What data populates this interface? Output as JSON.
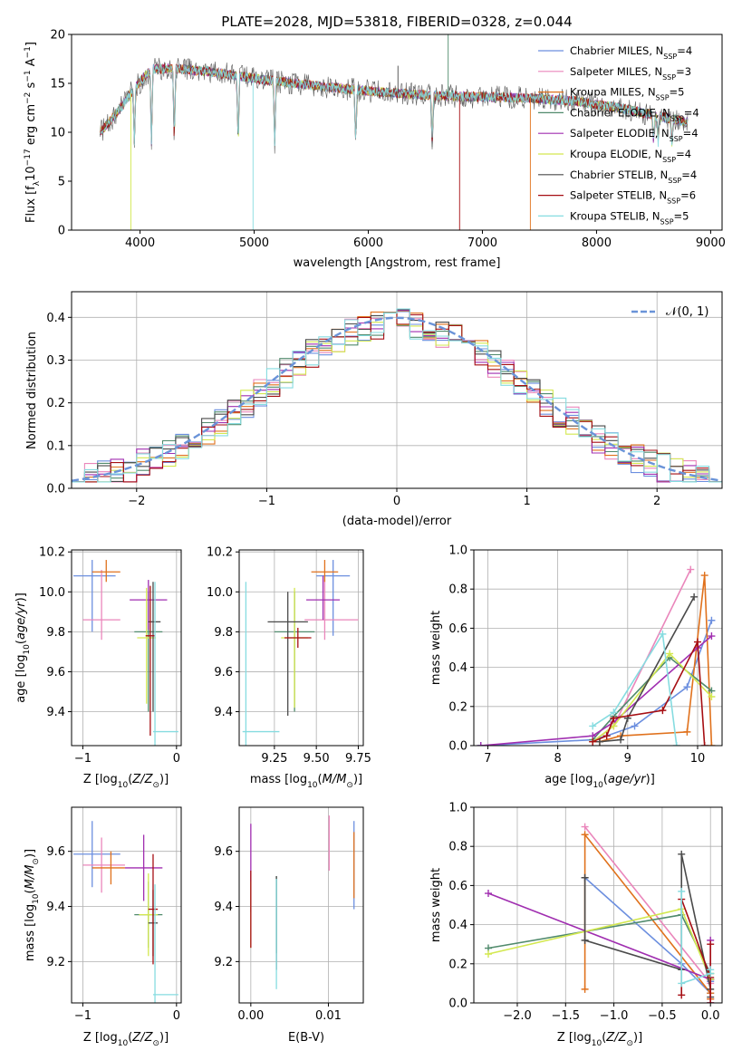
{
  "title": "PLATE=2028, MJD=53818, FIBERID=0328, z=0.044",
  "colors": [
    "#6c8fdf",
    "#ea86bb",
    "#e0711c",
    "#508a6c",
    "#a02eb0",
    "#d3e84f",
    "#4a4a4a",
    "#a60e13",
    "#86dce0"
  ],
  "legend": [
    {
      "base": "Chabrier MILES, N",
      "sub": "SSP",
      "tail": "=4"
    },
    {
      "base": "Salpeter MILES, N",
      "sub": "SSP",
      "tail": "=3"
    },
    {
      "base": "Kroupa MILES, N",
      "sub": "SSP",
      "tail": "=5"
    },
    {
      "base": "Chabrier ELODIE, N",
      "sub": "SSP",
      "tail": "=4"
    },
    {
      "base": "Salpeter ELODIE, N",
      "sub": "SSP",
      "tail": "=4"
    },
    {
      "base": "Kroupa ELODIE, N",
      "sub": "SSP",
      "tail": "=4"
    },
    {
      "base": "Chabrier STELIB, N",
      "sub": "SSP",
      "tail": "=4"
    },
    {
      "base": "Salpeter STELIB, N",
      "sub": "SSP",
      "tail": "=6"
    },
    {
      "base": "Kroupa STELIB, N",
      "sub": "SSP",
      "tail": "=5"
    }
  ],
  "chart_data": [
    {
      "id": "spectrum",
      "type": "line",
      "xlabel": "wavelength [Angstrom, rest frame]",
      "ylabel": "Flux [f_λ 10^-17 erg cm^-2 s^-1 A^-1]",
      "xlim": [
        3400,
        9100
      ],
      "ylim": [
        0,
        20
      ],
      "xticks": [
        4000,
        5000,
        6000,
        7000,
        8000,
        9000
      ],
      "yticks": [
        0,
        5,
        10,
        15,
        20
      ],
      "grid": false,
      "legend_position": "top-right",
      "continuum": {
        "x": [
          3650,
          3800,
          3950,
          4100,
          4300,
          4600,
          5000,
          5500,
          6000,
          6500,
          7000,
          7400,
          7800,
          8200,
          8600,
          8800
        ],
        "y": [
          10,
          12,
          14.5,
          16.5,
          16.5,
          16.2,
          15.5,
          14.8,
          14.2,
          13.8,
          13.6,
          13.5,
          13.2,
          12.5,
          11.5,
          11
        ]
      },
      "dips": [
        {
          "x": 3950,
          "y": 9
        },
        {
          "x": 4100,
          "y": 10
        },
        {
          "x": 4300,
          "y": 11
        },
        {
          "x": 4860,
          "y": 9.5
        },
        {
          "x": 5180,
          "y": 12
        },
        {
          "x": 5890,
          "y": 12
        },
        {
          "x": 6560,
          "y": 11
        },
        {
          "x": 8500,
          "y": 10
        },
        {
          "x": 8540,
          "y": 9.8
        },
        {
          "x": 8660,
          "y": 10
        }
      ]
    },
    {
      "id": "residuals",
      "type": "histogram",
      "xlabel": "(data-model)/error",
      "ylabel": "Normed distribution",
      "xlim": [
        -2.5,
        2.5
      ],
      "ylim": [
        0,
        0.46
      ],
      "xticks": [
        -2,
        -1,
        0,
        1,
        2
      ],
      "yticks": [
        0.0,
        0.1,
        0.2,
        0.3,
        0.4
      ],
      "grid": true,
      "bin_width": 0.1,
      "reference": {
        "name": "𝒩(0, 1)",
        "style": "dashed",
        "color": "#6a93d8"
      },
      "legend_position": "top-right"
    },
    {
      "id": "age_vs_Z",
      "type": "errorbar",
      "xlabel": "Z [log10(Z/Z⊙)]",
      "ylabel": "age [log10(age/yr)]",
      "xlim": [
        -1.12,
        0.05
      ],
      "ylim": [
        9.23,
        10.21
      ],
      "xticks": [
        -1,
        0
      ],
      "yticks": [
        9.4,
        9.6,
        9.8,
        10.0,
        10.2
      ],
      "grid": true,
      "points": [
        {
          "x": -0.9,
          "xerr": [
            0.2,
            0.25
          ],
          "y": 10.08,
          "yerr": [
            0.28,
            0.08
          ]
        },
        {
          "x": -0.8,
          "xerr": [
            0.2,
            0.2
          ],
          "y": 9.86,
          "yerr": [
            0.1,
            0.25
          ]
        },
        {
          "x": -0.75,
          "xerr": [
            0.15,
            0.15
          ],
          "y": 10.1,
          "yerr": [
            0.05,
            0.06
          ]
        },
        {
          "x": -0.3,
          "xerr": [
            0.15,
            0.15
          ],
          "y": 9.8,
          "yerr": [
            0.4,
            0.2
          ]
        },
        {
          "x": -0.3,
          "xerr": [
            0.2,
            0.2
          ],
          "y": 9.96,
          "yerr": [
            0.15,
            0.1
          ]
        },
        {
          "x": -0.32,
          "xerr": [
            0.1,
            0.1
          ],
          "y": 9.77,
          "yerr": [
            0.33,
            0.25
          ]
        },
        {
          "x": -0.25,
          "xerr": [
            0.05,
            0.08
          ],
          "y": 9.85,
          "yerr": [
            0.45,
            0.2
          ]
        },
        {
          "x": -0.28,
          "xerr": [
            0.05,
            0.05
          ],
          "y": 9.78,
          "yerr": [
            0.5,
            0.25
          ]
        },
        {
          "x": -0.23,
          "xerr": [
            0.02,
            0.25
          ],
          "y": 9.3,
          "yerr": [
            0.1,
            0.75
          ]
        }
      ]
    },
    {
      "id": "age_vs_mass",
      "type": "errorbar",
      "xlabel": "mass [log10(M/M⊙)]",
      "ylabel": "",
      "xlim": [
        9.04,
        9.78
      ],
      "ylim": [
        9.23,
        10.21
      ],
      "xticks": [
        9.25,
        9.5,
        9.75
      ],
      "yticks": [
        9.4,
        9.6,
        9.8,
        10.0,
        10.2
      ],
      "grid": true,
      "points": [
        {
          "x": 9.6,
          "xerr": [
            0.1,
            0.1
          ],
          "y": 10.08,
          "yerr": [
            0.3,
            0.08
          ]
        },
        {
          "x": 9.55,
          "xerr": [
            0.12,
            0.2
          ],
          "y": 9.86,
          "yerr": [
            0.1,
            0.2
          ]
        },
        {
          "x": 9.55,
          "xerr": [
            0.08,
            0.08
          ],
          "y": 10.1,
          "yerr": [
            0.05,
            0.06
          ]
        },
        {
          "x": 9.37,
          "xerr": [
            0.12,
            0.12
          ],
          "y": 9.8,
          "yerr": [
            0.4,
            0.2
          ]
        },
        {
          "x": 9.54,
          "xerr": [
            0.1,
            0.1
          ],
          "y": 9.96,
          "yerr": [
            0.1,
            0.12
          ]
        },
        {
          "x": 9.37,
          "xerr": [
            0.08,
            0.08
          ],
          "y": 9.77,
          "yerr": [
            0.35,
            0.25
          ]
        },
        {
          "x": 9.33,
          "xerr": [
            0.12,
            0.12
          ],
          "y": 9.85,
          "yerr": [
            0.47,
            0.15
          ]
        },
        {
          "x": 9.39,
          "xerr": [
            0.08,
            0.08
          ],
          "y": 9.77,
          "yerr": [
            0.05,
            0.05
          ]
        },
        {
          "x": 9.08,
          "xerr": [
            0.02,
            0.2
          ],
          "y": 9.3,
          "yerr": [
            0.1,
            0.75
          ]
        }
      ]
    },
    {
      "id": "massweight_vs_age",
      "type": "line",
      "xlabel": "age [log10(age/yr)]",
      "ylabel": "mass weight",
      "xlim": [
        6.8,
        10.35
      ],
      "ylim": [
        0,
        1
      ],
      "xticks": [
        7,
        8,
        9,
        10
      ],
      "yticks": [
        0.0,
        0.2,
        0.4,
        0.6,
        0.8,
        1.0
      ],
      "grid": true,
      "series": [
        {
          "x": [
            6.9,
            8.5,
            8.7,
            9.1,
            9.85,
            10.2
          ],
          "y": [
            0.0,
            0.03,
            0.05,
            0.1,
            0.3,
            0.64
          ]
        },
        {
          "x": [
            8.5,
            8.8,
            9.9
          ],
          "y": [
            0.02,
            0.1,
            0.9
          ]
        },
        {
          "x": [
            8.6,
            8.9,
            9.85,
            10.1,
            10.2
          ],
          "y": [
            0.02,
            0.05,
            0.07,
            0.87,
            0.0
          ]
        },
        {
          "x": [
            8.5,
            8.8,
            9.6,
            10.2
          ],
          "y": [
            0.03,
            0.15,
            0.45,
            0.28
          ]
        },
        {
          "x": [
            6.9,
            8.5,
            8.8,
            10.0,
            10.2
          ],
          "y": [
            0.0,
            0.05,
            0.12,
            0.5,
            0.56
          ]
        },
        {
          "x": [
            8.5,
            8.8,
            9.6,
            10.2
          ],
          "y": [
            0.02,
            0.1,
            0.47,
            0.25
          ]
        },
        {
          "x": [
            8.6,
            8.9,
            9.0,
            9.95
          ],
          "y": [
            0.02,
            0.03,
            0.14,
            0.76
          ]
        },
        {
          "x": [
            8.5,
            8.7,
            8.8,
            9.5,
            10.0,
            10.1
          ],
          "y": [
            0.02,
            0.05,
            0.14,
            0.18,
            0.53,
            0.0
          ]
        },
        {
          "x": [
            8.5,
            8.8,
            9.5,
            9.7
          ],
          "y": [
            0.1,
            0.17,
            0.57,
            0.0
          ]
        }
      ]
    },
    {
      "id": "mass_vs_Z",
      "type": "errorbar",
      "xlabel": "Z [log10(Z/Z⊙)]",
      "ylabel": "mass [log10(M/M⊙)]",
      "xlim": [
        -1.12,
        0.05
      ],
      "ylim": [
        9.05,
        9.76
      ],
      "xticks": [
        -1,
        0
      ],
      "yticks": [
        9.2,
        9.4,
        9.6
      ],
      "grid": true,
      "points": [
        {
          "x": -0.9,
          "xerr": [
            0.2,
            0.3
          ],
          "y": 9.59,
          "yerr": [
            0.12,
            0.12
          ]
        },
        {
          "x": -0.8,
          "xerr": [
            0.2,
            0.25
          ],
          "y": 9.55,
          "yerr": [
            0.1,
            0.1
          ]
        },
        {
          "x": -0.7,
          "xerr": [
            0.2,
            0.15
          ],
          "y": 9.54,
          "yerr": [
            0.06,
            0.06
          ]
        },
        {
          "x": -0.3,
          "xerr": [
            0.15,
            0.15
          ],
          "y": 9.37,
          "yerr": [
            0.12,
            0.12
          ]
        },
        {
          "x": -0.35,
          "xerr": [
            0.2,
            0.2
          ],
          "y": 9.54,
          "yerr": [
            0.12,
            0.12
          ]
        },
        {
          "x": -0.3,
          "xerr": [
            0.1,
            0.1
          ],
          "y": 9.37,
          "yerr": [
            0.15,
            0.15
          ]
        },
        {
          "x": -0.25,
          "xerr": [
            0.05,
            0.05
          ],
          "y": 9.34,
          "yerr": [
            0.12,
            0.12
          ]
        },
        {
          "x": -0.25,
          "xerr": [
            0.05,
            0.05
          ],
          "y": 9.39,
          "yerr": [
            0.2,
            0.2
          ]
        },
        {
          "x": -0.23,
          "xerr": [
            0.02,
            0.25
          ],
          "y": 9.08,
          "yerr": [
            0.1,
            0.4
          ]
        }
      ]
    },
    {
      "id": "mass_vs_ebv",
      "type": "errorbar",
      "xlabel": "E(B-V)",
      "ylabel": "",
      "xlim": [
        -0.0015,
        0.0145
      ],
      "ylim": [
        9.05,
        9.76
      ],
      "xticks": [
        0.0,
        0.01
      ],
      "yticks": [
        9.2,
        9.4,
        9.6
      ],
      "grid": true,
      "points": [
        {
          "x": 0.0133,
          "xerr": [
            0,
            0
          ],
          "y": 9.55,
          "yerr": [
            0.16,
            0.16
          ]
        },
        {
          "x": 0.0101,
          "xerr": [
            0,
            0
          ],
          "y": 9.63,
          "yerr": [
            0.1,
            0.1
          ]
        },
        {
          "x": 0.0133,
          "xerr": [
            0,
            0
          ],
          "y": 9.55,
          "yerr": [
            0.12,
            0.12
          ]
        },
        {
          "x": 0.0033,
          "xerr": [
            0,
            0
          ],
          "y": 9.37,
          "yerr": [
            0.14,
            0.14
          ]
        },
        {
          "x": 0.0,
          "xerr": [
            0,
            0
          ],
          "y": 9.54,
          "yerr": [
            0.16,
            0.16
          ]
        },
        {
          "x": 0.0,
          "xerr": [
            0,
            0
          ],
          "y": 9.37,
          "yerr": [
            0.12,
            0.12
          ]
        },
        {
          "x": 0.0033,
          "xerr": [
            0,
            0
          ],
          "y": 9.34,
          "yerr": [
            0.17,
            0.17
          ]
        },
        {
          "x": 0.0,
          "xerr": [
            0,
            0
          ],
          "y": 9.39,
          "yerr": [
            0.14,
            0.14
          ]
        },
        {
          "x": 0.0033,
          "xerr": [
            0,
            0
          ],
          "y": 9.3,
          "yerr": [
            0.2,
            0.2
          ]
        }
      ]
    },
    {
      "id": "massweight_vs_Z",
      "type": "line",
      "xlabel": "Z [log10(Z/Z⊙)]",
      "ylabel": "mass weight",
      "xlim": [
        -2.45,
        0.12
      ],
      "ylim": [
        0,
        1
      ],
      "xticks": [
        -2.0,
        -1.5,
        -1.0,
        -0.5,
        0.0
      ],
      "yticks": [
        0.0,
        0.2,
        0.4,
        0.6,
        0.8,
        1.0
      ],
      "grid": true,
      "series": [
        {
          "x": [
            -1.3,
            -0.3,
            0.0,
            0.0
          ],
          "y": [
            0.64,
            0.2,
            0.05,
            0.11
          ]
        },
        {
          "x": [
            -1.3,
            0.0,
            0.0
          ],
          "y": [
            0.9,
            0.1,
            0.02
          ]
        },
        {
          "x": [
            -1.3,
            -1.3,
            0.0,
            0.0
          ],
          "y": [
            0.07,
            0.86,
            0.05,
            0.02
          ]
        },
        {
          "x": [
            -2.3,
            -0.3,
            0.0,
            0.0
          ],
          "y": [
            0.28,
            0.45,
            0.15,
            0.12
          ]
        },
        {
          "x": [
            -2.3,
            0.0,
            0.0,
            0.0
          ],
          "y": [
            0.56,
            0.12,
            0.32,
            0.0
          ]
        },
        {
          "x": [
            -2.3,
            -0.3,
            0.0,
            0.0
          ],
          "y": [
            0.25,
            0.48,
            0.12,
            0.15
          ]
        },
        {
          "x": [
            -1.3,
            -1.3,
            -0.3,
            -0.3,
            0.0,
            0.0
          ],
          "y": [
            0.64,
            0.32,
            0.17,
            0.76,
            0.07,
            0.03
          ]
        },
        {
          "x": [
            -0.3,
            -0.3,
            0.0,
            0.0,
            0.0
          ],
          "y": [
            0.04,
            0.53,
            0.13,
            0.0,
            0.3
          ]
        },
        {
          "x": [
            -0.3,
            -0.3,
            0.0,
            0.0
          ],
          "y": [
            0.57,
            0.1,
            0.15,
            0.17
          ]
        }
      ]
    }
  ]
}
